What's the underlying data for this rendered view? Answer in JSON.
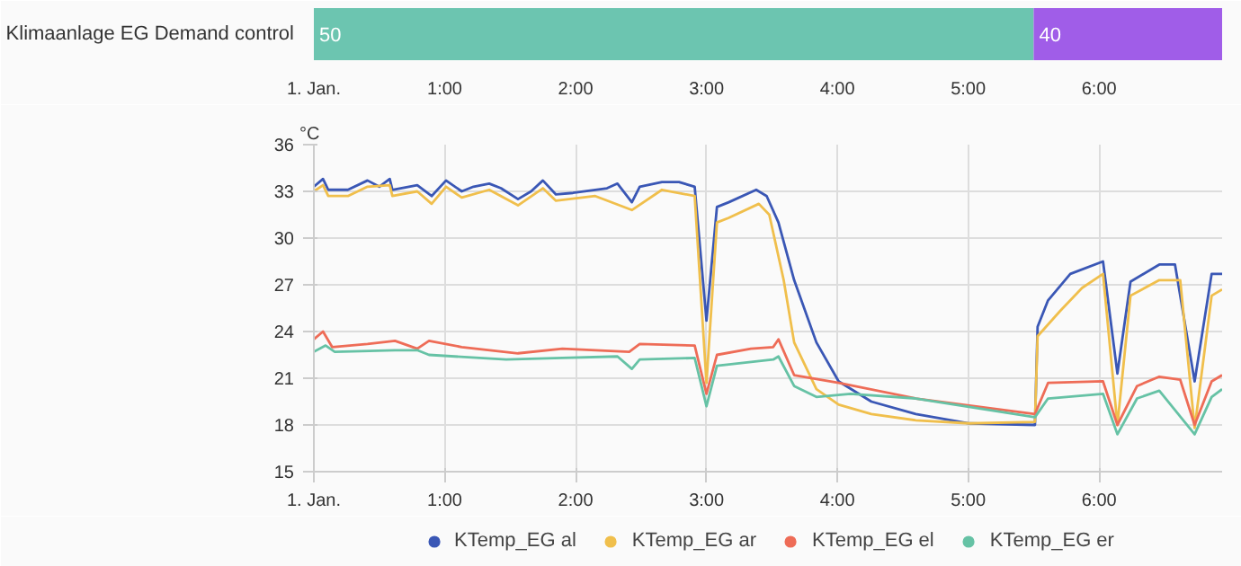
{
  "chart_data": [
    {
      "type": "bar",
      "orientation": "horizontal",
      "stacked": true,
      "categories": [
        "Klimaanlage EG Demand control"
      ],
      "series": [
        {
          "name": "50",
          "color": "#6cc5b0",
          "values": [
            5.5
          ]
        },
        {
          "name": "40",
          "color": "#a05de8",
          "values": [
            1.44
          ]
        }
      ],
      "xlim": [
        0,
        6.94
      ],
      "xticks": [
        {
          "value": 0,
          "label": "1. Jan."
        },
        {
          "value": 1,
          "label": "1:00"
        },
        {
          "value": 2,
          "label": "2:00"
        },
        {
          "value": 3,
          "label": "3:00"
        },
        {
          "value": 4,
          "label": "4:00"
        },
        {
          "value": 5,
          "label": "5:00"
        },
        {
          "value": 6,
          "label": "6:00"
        }
      ],
      "grid": false
    },
    {
      "type": "line",
      "ylabel": "°C",
      "legend": "bottom",
      "grid": true,
      "xlim": [
        0,
        6.94
      ],
      "xticks": [
        {
          "value": 0,
          "label": "1. Jan."
        },
        {
          "value": 1,
          "label": "1:00"
        },
        {
          "value": 2,
          "label": "2:00"
        },
        {
          "value": 3,
          "label": "3:00"
        },
        {
          "value": 4,
          "label": "4:00"
        },
        {
          "value": 5,
          "label": "5:00"
        },
        {
          "value": 6,
          "label": "6:00"
        }
      ],
      "ylim": [
        15,
        36
      ],
      "yticks": [
        15,
        18,
        21,
        24,
        27,
        30,
        33,
        36
      ],
      "series": [
        {
          "name": "KTemp_EG al",
          "color": "#3a57b5",
          "x": [
            0,
            0.07,
            0.11,
            0.26,
            0.41,
            0.5,
            0.58,
            0.6,
            0.79,
            0.9,
            1.01,
            1.13,
            1.22,
            1.34,
            1.43,
            1.56,
            1.66,
            1.75,
            1.85,
            1.98,
            2.15,
            2.24,
            2.32,
            2.43,
            2.49,
            2.66,
            2.79,
            2.91,
            3.0,
            3.08,
            3.17,
            3.38,
            3.46,
            3.55,
            3.67,
            3.84,
            4.01,
            4.26,
            4.6,
            5.01,
            5.51,
            5.53,
            5.61,
            5.78,
            6.03,
            6.14,
            6.24,
            6.46,
            6.58,
            6.73,
            6.86,
            6.94
          ],
          "values": [
            33.3,
            33.8,
            33.1,
            33.1,
            33.7,
            33.3,
            33.8,
            33.1,
            33.4,
            32.7,
            33.7,
            33.0,
            33.3,
            33.5,
            33.2,
            32.5,
            33.0,
            33.7,
            32.8,
            32.9,
            33.1,
            33.2,
            33.5,
            32.3,
            33.3,
            33.6,
            33.6,
            33.3,
            24.7,
            32.0,
            32.3,
            33.1,
            32.7,
            31.0,
            27.3,
            23.3,
            20.8,
            19.5,
            18.7,
            18.1,
            18.0,
            24.3,
            26.0,
            27.7,
            28.5,
            21.3,
            27.2,
            28.3,
            28.3,
            20.8,
            27.7,
            27.7
          ]
        },
        {
          "name": "KTemp_EG ar",
          "color": "#f0bf4c",
          "x": [
            0,
            0.07,
            0.11,
            0.26,
            0.41,
            0.58,
            0.6,
            0.79,
            0.9,
            1.01,
            1.13,
            1.34,
            1.56,
            1.75,
            1.85,
            2.15,
            2.43,
            2.66,
            2.91,
            3.0,
            3.08,
            3.17,
            3.4,
            3.48,
            3.59,
            3.67,
            3.84,
            4.01,
            4.26,
            4.6,
            5.01,
            5.51,
            5.53,
            5.7,
            5.87,
            6.03,
            6.14,
            6.24,
            6.46,
            6.62,
            6.73,
            6.86,
            6.94
          ],
          "values": [
            33.0,
            33.4,
            32.7,
            32.7,
            33.3,
            33.4,
            32.7,
            33.0,
            32.2,
            33.3,
            32.6,
            33.1,
            32.1,
            33.2,
            32.4,
            32.7,
            31.8,
            33.1,
            32.7,
            20.7,
            31.0,
            31.3,
            32.2,
            31.5,
            27.3,
            23.3,
            20.3,
            19.3,
            18.7,
            18.3,
            18.1,
            18.2,
            23.7,
            25.3,
            26.8,
            27.7,
            18.0,
            26.3,
            27.3,
            27.3,
            17.8,
            26.3,
            26.7
          ]
        },
        {
          "name": "KTemp_EG el",
          "color": "#ee6c57",
          "x": [
            0,
            0.07,
            0.14,
            0.41,
            0.62,
            0.79,
            0.88,
            1.13,
            1.56,
            1.9,
            2.41,
            2.49,
            2.91,
            3.0,
            3.08,
            3.34,
            3.51,
            3.55,
            3.67,
            4.01,
            4.6,
            5.51,
            5.61,
            6.03,
            6.14,
            6.29,
            6.46,
            6.62,
            6.73,
            6.86,
            6.94
          ],
          "values": [
            23.5,
            24.0,
            23.0,
            23.2,
            23.4,
            22.9,
            23.4,
            23.0,
            22.6,
            22.9,
            22.7,
            23.2,
            23.1,
            20.0,
            22.5,
            22.9,
            23.0,
            23.5,
            21.2,
            20.7,
            19.7,
            18.7,
            20.7,
            20.8,
            18.0,
            20.5,
            21.1,
            20.9,
            18.0,
            20.8,
            21.2
          ]
        },
        {
          "name": "KTemp_EG er",
          "color": "#66c2a5",
          "x": [
            0,
            0.09,
            0.16,
            0.62,
            0.79,
            0.88,
            1.47,
            1.9,
            2.32,
            2.43,
            2.49,
            2.91,
            3.0,
            3.08,
            3.51,
            3.55,
            3.67,
            3.84,
            4.1,
            4.6,
            5.51,
            5.61,
            6.03,
            6.14,
            6.29,
            6.46,
            6.73,
            6.86,
            6.94
          ],
          "values": [
            22.7,
            23.1,
            22.7,
            22.8,
            22.8,
            22.5,
            22.2,
            22.3,
            22.4,
            21.6,
            22.2,
            22.3,
            19.2,
            21.8,
            22.2,
            22.4,
            20.5,
            19.8,
            20.0,
            19.7,
            18.5,
            19.7,
            20.0,
            17.4,
            19.7,
            20.2,
            17.4,
            19.8,
            20.3
          ]
        }
      ]
    }
  ]
}
